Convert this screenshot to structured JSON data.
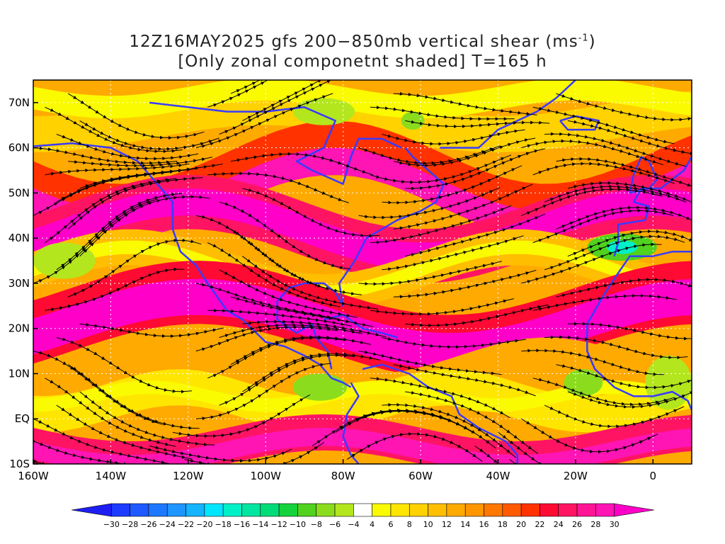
{
  "title": {
    "line1_prefix": "12Z16MAY2025 gfs 200−850mb vertical shear (ms",
    "line1_sup": "-1",
    "line1_suffix": ")",
    "line2": "[Only zonal componetnt shaded] T=165 h"
  },
  "chart_data": {
    "type": "heatmap",
    "title": "12Z16MAY2025 gfs 200−850mb vertical shear (ms-1) [Only zonal componetnt shaded] T=165 h",
    "x_ticks": [
      "160W",
      "140W",
      "120W",
      "100W",
      "80W",
      "60W",
      "40W",
      "20W",
      "0"
    ],
    "x_tick_values": [
      -160,
      -140,
      -120,
      -100,
      -80,
      -60,
      -40,
      -20,
      0
    ],
    "y_ticks": [
      "70N",
      "60N",
      "50N",
      "40N",
      "30N",
      "20N",
      "10N",
      "EQ",
      "10S"
    ],
    "y_tick_values": [
      70,
      60,
      50,
      40,
      30,
      20,
      10,
      0,
      -10
    ],
    "xlim": [
      -160,
      10
    ],
    "ylim": [
      -10,
      75
    ],
    "grid": true,
    "contour_levels": [
      -30,
      -28,
      -26,
      -24,
      -22,
      -20,
      -18,
      -16,
      -14,
      -12,
      -10,
      -8,
      -6,
      -4,
      4,
      6,
      8,
      10,
      12,
      14,
      16,
      18,
      20,
      22,
      24,
      26,
      28,
      30
    ],
    "colorbar_labels": [
      "−30",
      "−28",
      "−26",
      "−24",
      "−22",
      "−20",
      "−18",
      "−16",
      "−14",
      "−12",
      "−10",
      "−8",
      "−6",
      "−4",
      "4",
      "6",
      "8",
      "10",
      "12",
      "14",
      "16",
      "18",
      "20",
      "22",
      "24",
      "26",
      "28",
      "30"
    ],
    "colorbar_colors": [
      "#1e1ef0",
      "#1e3cff",
      "#1e5aff",
      "#1e78ff",
      "#1e96ff",
      "#14b4ff",
      "#00e6ff",
      "#00f0c8",
      "#00e6a0",
      "#00dc78",
      "#14d23c",
      "#50d21e",
      "#8cdc1e",
      "#b4e61e",
      "#ffffff",
      "#fafa00",
      "#ffe600",
      "#ffd200",
      "#ffbe00",
      "#ffaa00",
      "#ff9600",
      "#ff7800",
      "#ff5a00",
      "#ff3200",
      "#ff0a32",
      "#ff1464",
      "#ff1496",
      "#ff14b4",
      "#ff00c8"
    ],
    "shaded_field": "zonal component of 200-850mb vertical shear (ms-1)",
    "vector_field": "200-850mb vertical shear streamlines",
    "bands": [
      {
        "lat_center": 65,
        "value": 8
      },
      {
        "lat_center": 52,
        "value": 22
      },
      {
        "lat_center": 42,
        "value": 30
      },
      {
        "lat_center": 33,
        "value": 14
      },
      {
        "lat_center": 20,
        "value": 30
      },
      {
        "lat_center": 10,
        "value": 12
      },
      {
        "lat_center": 0,
        "value": 6
      },
      {
        "lat_center": -6,
        "value": 24
      }
    ]
  }
}
